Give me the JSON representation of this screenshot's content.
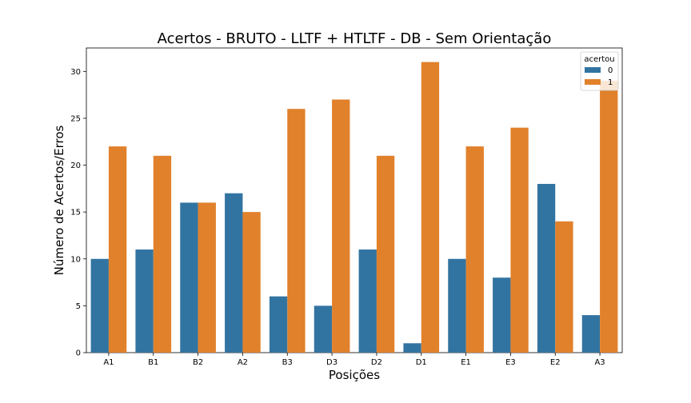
{
  "chart_data": {
    "type": "bar",
    "title": "Acertos - BRUTO - LLTF + HTLTF - DB - Sem Orientação",
    "xlabel": "Posições",
    "ylabel": "Número de Acertos/Erros",
    "categories": [
      "A1",
      "B1",
      "B2",
      "A2",
      "B3",
      "D3",
      "D2",
      "D1",
      "E1",
      "E3",
      "E2",
      "A3"
    ],
    "series": [
      {
        "name": "0",
        "color": "#3274a1",
        "values": [
          10,
          11,
          16,
          17,
          6,
          5,
          11,
          1,
          10,
          8,
          18,
          4
        ]
      },
      {
        "name": "1",
        "color": "#e1812c",
        "values": [
          22,
          21,
          16,
          15,
          26,
          27,
          21,
          31,
          22,
          24,
          14,
          29
        ]
      }
    ],
    "ylim": [
      0,
      32.5
    ],
    "yticks": [
      0,
      5,
      10,
      15,
      20,
      25,
      30
    ],
    "grid": false,
    "legend": {
      "title": "acertou",
      "position": "top-right"
    }
  }
}
